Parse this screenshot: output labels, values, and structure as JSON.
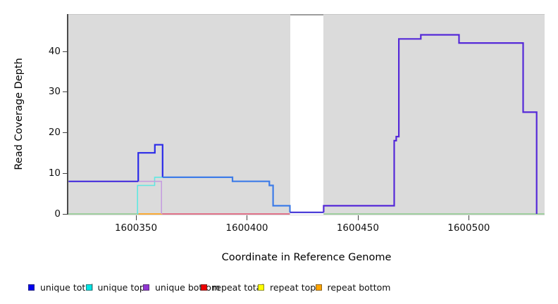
{
  "chart_data": {
    "type": "line",
    "title": "",
    "xlabel": "Coordinate in Reference Genome",
    "ylabel": "Read Coverage Depth",
    "xlim": [
      1600319.5,
      1600534.2
    ],
    "ylim": [
      0,
      49.1
    ],
    "x_ticks": [
      1600350,
      1600400,
      1600450,
      1600500
    ],
    "y_ticks": [
      0,
      10,
      20,
      30,
      40
    ],
    "grid": "off",
    "plot_background": "#dbdbdb",
    "gap_region": {
      "x_start": 1600419.4,
      "x_end": 1600434.6
    },
    "legend_position": "bottom",
    "legend": [
      {
        "label": "unique total",
        "color": "#0000EE"
      },
      {
        "label": "unique top",
        "color": "#00E5E5"
      },
      {
        "label": "unique bottom",
        "color": "#9137D3"
      },
      {
        "label": "repeat total",
        "color": "#EE0000"
      },
      {
        "label": "repeat top",
        "color": "#FFFF00"
      },
      {
        "label": "repeat bottom",
        "color": "#FFA500"
      }
    ],
    "series": [
      {
        "name": "baseline-left",
        "color": "#8BCB8B",
        "width": 1.6,
        "points": [
          [
            1600319.6,
            0
          ],
          [
            1600351.6,
            0
          ]
        ]
      },
      {
        "name": "baseline-right",
        "color": "#8BCB8B",
        "width": 1.6,
        "points": [
          [
            1600434.6,
            0
          ],
          [
            1600534.1,
            0
          ]
        ]
      },
      {
        "name": "repeat-bottom-line",
        "color": "#FFA41E",
        "width": 1.8,
        "points": [
          [
            1600351.2,
            0
          ],
          [
            1600361.8,
            0
          ]
        ]
      },
      {
        "name": "repeat-total-line",
        "color": "#E2647E",
        "width": 1.8,
        "points": [
          [
            1600361.8,
            0
          ],
          [
            1600419.3,
            0
          ]
        ]
      },
      {
        "name": "unique-top-line",
        "color": "#5FE8E2",
        "width": 1.6,
        "points": [
          [
            1600350.7,
            0
          ],
          [
            1600350.7,
            7
          ],
          [
            1600358.4,
            7
          ],
          [
            1600358.4,
            9
          ],
          [
            1600361.9,
            9
          ]
        ]
      },
      {
        "name": "unique-bottom-line",
        "color": "#C69DDF",
        "width": 1.6,
        "points": [
          [
            1600351,
            8
          ],
          [
            1600361.5,
            8
          ],
          [
            1600361.5,
            0
          ]
        ]
      },
      {
        "name": "unique-total-left",
        "color": "#3D25DC",
        "width": 2,
        "points": [
          [
            1600319.6,
            8
          ],
          [
            1600351,
            8
          ]
        ]
      },
      {
        "name": "unique-total-peak",
        "color": "#2B2BE8",
        "width": 2.2,
        "points": [
          [
            1600351,
            8
          ],
          [
            1600351,
            15
          ],
          [
            1600358.5,
            15
          ],
          [
            1600358.5,
            17
          ],
          [
            1600362,
            17
          ],
          [
            1600362,
            9
          ]
        ]
      },
      {
        "name": "unique-total-mid",
        "color": "#3E7CE8",
        "width": 2.2,
        "points": [
          [
            1600362,
            9
          ],
          [
            1600393.5,
            9
          ],
          [
            1600393.5,
            8
          ],
          [
            1600410.1,
            8
          ],
          [
            1600410.1,
            7
          ],
          [
            1600411.8,
            7
          ],
          [
            1600411.8,
            2
          ],
          [
            1600419.4,
            2
          ],
          [
            1600419.4,
            0.4
          ]
        ]
      },
      {
        "name": "unique-total-gap",
        "color": "#3526D2",
        "width": 2,
        "points": [
          [
            1600419.4,
            0.4
          ],
          [
            1600434.6,
            0.4
          ]
        ]
      },
      {
        "name": "unique-total-right",
        "color": "#5529D8",
        "width": 2.2,
        "points": [
          [
            1600434.6,
            0.4
          ],
          [
            1600434.6,
            2
          ],
          [
            1600466.4,
            2
          ],
          [
            1600466.4,
            18
          ],
          [
            1600467.3,
            18
          ],
          [
            1600467.3,
            19
          ],
          [
            1600468.5,
            19
          ],
          [
            1600468.5,
            43
          ],
          [
            1600478.4,
            43
          ],
          [
            1600478.4,
            44
          ],
          [
            1600495.6,
            44
          ],
          [
            1600495.6,
            42
          ],
          [
            1600524.5,
            42
          ],
          [
            1600524.5,
            25
          ],
          [
            1600530.6,
            25
          ],
          [
            1600530.6,
            0
          ]
        ]
      }
    ]
  }
}
